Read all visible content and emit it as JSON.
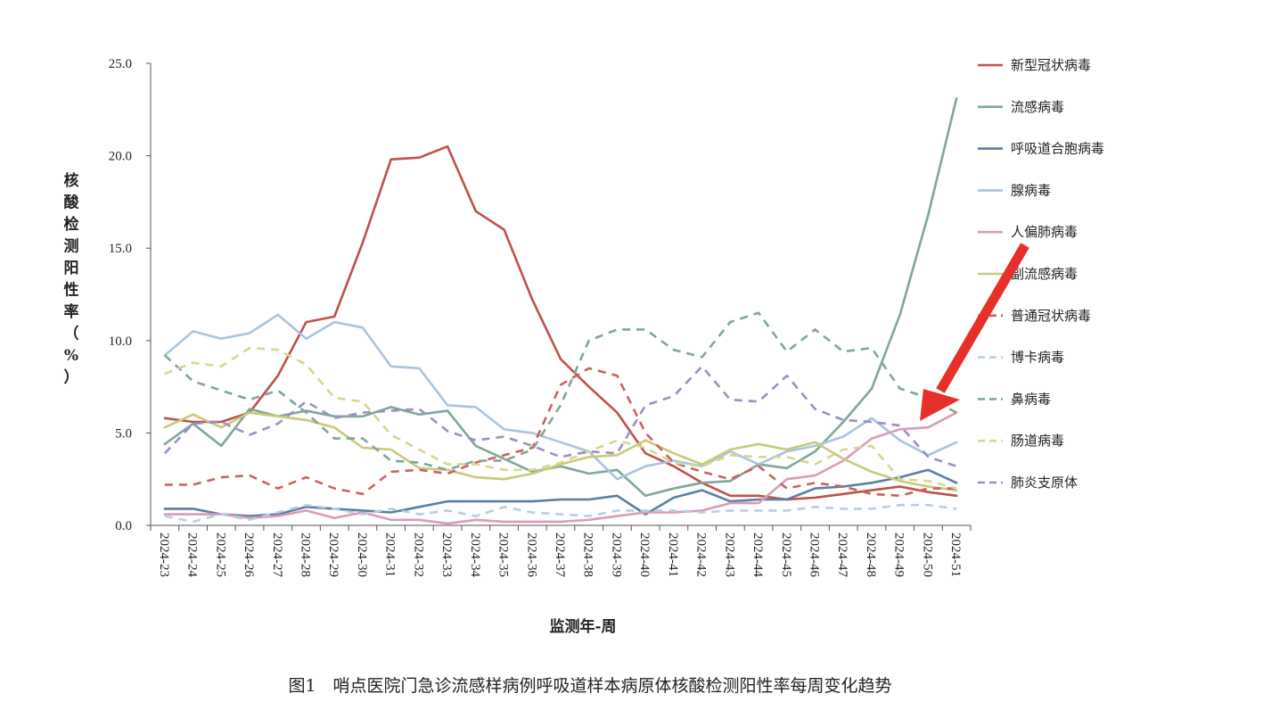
{
  "chart_data": {
    "type": "line",
    "title": "",
    "caption": "图1　哨点医院门急诊流感样病例呼吸道样本病原体核酸检测阳性率每周变化趋势",
    "xlabel": "监测年-周",
    "ylabel": "核酸检测阳性率（%）",
    "ylim": [
      0,
      25
    ],
    "y_ticks": [
      "0.0",
      "5.0",
      "10.0",
      "15.0",
      "20.0",
      "25.0"
    ],
    "grid": false,
    "legend_position": "right",
    "categories": [
      "2024-23",
      "2024-24",
      "2024-25",
      "2024-26",
      "2024-27",
      "2024-28",
      "2024-29",
      "2024-30",
      "2024-31",
      "2024-32",
      "2024-33",
      "2024-34",
      "2024-35",
      "2024-36",
      "2024-37",
      "2024-38",
      "2024-39",
      "2024-40",
      "2024-41",
      "2024-42",
      "2024-43",
      "2024-44",
      "2024-45",
      "2024-46",
      "2024-47",
      "2024-48",
      "2024-49",
      "2024-50",
      "2024-51"
    ],
    "series": [
      {
        "name": "新型冠状病毒",
        "color": "#c0504d",
        "dash": false,
        "values": [
          5.8,
          5.6,
          5.6,
          6.1,
          8.1,
          11.0,
          11.3,
          15.3,
          19.8,
          19.9,
          20.5,
          17.0,
          16.0,
          12.2,
          9.0,
          7.5,
          6.1,
          3.9,
          3.2,
          2.3,
          1.6,
          1.6,
          1.4,
          1.5,
          1.7,
          1.9,
          2.1,
          1.8,
          1.6
        ]
      },
      {
        "name": "流感病毒",
        "color": "#7ea69a",
        "dash": false,
        "values": [
          4.4,
          5.5,
          4.3,
          6.3,
          5.9,
          6.2,
          5.9,
          5.9,
          6.4,
          6.0,
          6.2,
          4.3,
          3.6,
          2.9,
          3.2,
          2.8,
          3.0,
          1.6,
          2.0,
          2.3,
          2.4,
          3.3,
          3.1,
          4.0,
          5.6,
          7.4,
          11.4,
          16.8,
          23.1
        ]
      },
      {
        "name": "呼吸道合胞病毒",
        "color": "#5b7f9e",
        "dash": false,
        "values": [
          0.9,
          0.9,
          0.6,
          0.5,
          0.6,
          1.0,
          0.9,
          0.8,
          0.7,
          1.0,
          1.3,
          1.3,
          1.3,
          1.3,
          1.4,
          1.4,
          1.6,
          0.6,
          1.5,
          1.9,
          1.3,
          1.4,
          1.4,
          2.0,
          2.1,
          2.3,
          2.6,
          3.0,
          2.3
        ]
      },
      {
        "name": "腺病毒",
        "color": "#a9c4dc",
        "dash": false,
        "values": [
          9.2,
          10.5,
          10.1,
          10.4,
          11.4,
          10.1,
          11.0,
          10.7,
          8.6,
          8.5,
          6.5,
          6.4,
          5.2,
          5.0,
          4.5,
          4.0,
          2.5,
          3.2,
          3.5,
          3.2,
          4.0,
          3.3,
          4.0,
          4.3,
          4.8,
          5.8,
          4.6,
          3.8,
          4.5
        ]
      },
      {
        "name": "人偏肺病毒",
        "color": "#d89cb9",
        "dash": false,
        "values": [
          0.6,
          0.6,
          0.6,
          0.4,
          0.5,
          0.8,
          0.4,
          0.7,
          0.3,
          0.3,
          0.1,
          0.3,
          0.2,
          0.2,
          0.2,
          0.3,
          0.5,
          0.7,
          0.7,
          0.8,
          1.2,
          1.2,
          2.5,
          2.7,
          3.5,
          4.7,
          5.2,
          5.3,
          6.1
        ]
      },
      {
        "name": "副流感病毒",
        "color": "#c9c97a",
        "dash": false,
        "values": [
          5.3,
          6.0,
          5.3,
          6.1,
          5.9,
          5.7,
          5.3,
          4.2,
          4.1,
          3.1,
          3.0,
          2.6,
          2.5,
          2.8,
          3.3,
          3.7,
          3.8,
          4.6,
          3.9,
          3.3,
          4.1,
          4.4,
          4.1,
          4.5,
          3.6,
          2.9,
          2.4,
          2.1,
          1.9
        ]
      },
      {
        "name": "普通冠状病毒",
        "color": "#c9625e",
        "dash": true,
        "values": [
          2.2,
          2.2,
          2.6,
          2.7,
          2.0,
          2.6,
          2.0,
          1.7,
          2.9,
          3.0,
          2.8,
          3.4,
          3.8,
          4.2,
          7.6,
          8.5,
          8.1,
          5.0,
          3.4,
          2.9,
          2.5,
          3.2,
          2.0,
          2.3,
          2.1,
          1.7,
          1.6,
          2.0,
          2.0
        ]
      },
      {
        "name": "博卡病毒",
        "color": "#b5cde6",
        "dash": true,
        "values": [
          0.5,
          0.2,
          0.6,
          0.3,
          0.7,
          1.1,
          0.9,
          0.6,
          0.9,
          0.6,
          0.8,
          0.5,
          1.0,
          0.7,
          0.6,
          0.5,
          0.8,
          0.8,
          0.8,
          0.7,
          0.8,
          0.8,
          0.8,
          1.0,
          0.9,
          0.9,
          1.1,
          1.1,
          0.9
        ]
      },
      {
        "name": "鼻病毒",
        "color": "#7ea69a",
        "dash": true,
        "values": [
          9.2,
          7.8,
          7.3,
          6.8,
          7.3,
          6.1,
          4.7,
          4.7,
          3.5,
          3.4,
          3.0,
          3.5,
          3.5,
          4.1,
          6.5,
          10.0,
          10.6,
          10.6,
          9.5,
          9.1,
          11.0,
          11.5,
          9.4,
          10.6,
          9.4,
          9.6,
          7.4,
          6.9,
          6.1
        ]
      },
      {
        "name": "肠道病毒",
        "color": "#d6d68e",
        "dash": true,
        "values": [
          8.2,
          8.8,
          8.6,
          9.6,
          9.5,
          8.7,
          6.9,
          6.7,
          4.9,
          4.1,
          3.3,
          3.3,
          3.0,
          3.0,
          3.4,
          4.0,
          4.6,
          4.2,
          3.4,
          3.2,
          3.8,
          3.7,
          3.7,
          3.3,
          4.1,
          4.3,
          2.5,
          2.4,
          2.0
        ]
      },
      {
        "name": "肺炎支原体",
        "color": "#9c8fbf",
        "dash": true,
        "values": [
          3.9,
          5.5,
          5.6,
          4.9,
          5.5,
          6.7,
          5.8,
          6.1,
          6.2,
          6.3,
          5.1,
          4.6,
          4.8,
          4.3,
          3.7,
          4.0,
          3.9,
          6.5,
          7.0,
          8.6,
          6.8,
          6.7,
          8.1,
          6.3,
          5.7,
          5.6,
          5.4,
          3.7,
          3.2
        ]
      }
    ],
    "annotations": [
      {
        "type": "arrow",
        "color": "#e8302a",
        "target": "人偏肺病毒 2024-50"
      }
    ]
  }
}
